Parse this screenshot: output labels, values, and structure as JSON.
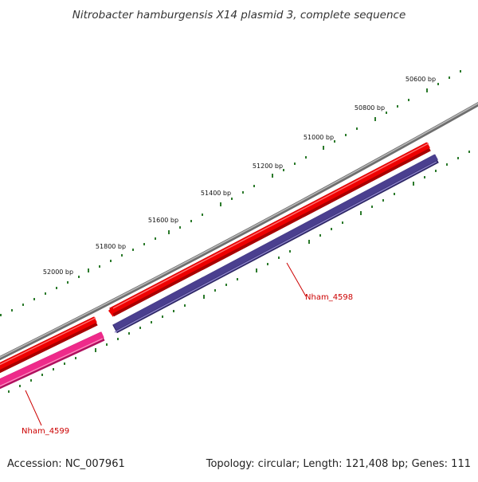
{
  "title": "Nitrobacter hamburgensis X14 plasmid 3, complete sequence",
  "footer": {
    "accession": "Accession: NC_007961",
    "summary": "Topology: circular; Length: 121,408 bp; Genes: 111"
  },
  "ruler": {
    "labels": [
      "50600 bp",
      "50800 bp",
      "51000 bp",
      "51200 bp",
      "51400 bp",
      "51600 bp",
      "51800 bp",
      "52000 bp"
    ]
  },
  "genes": [
    {
      "label": "Nham_4598",
      "color": "#cc0000"
    },
    {
      "label": "Nham_4599",
      "color": "#cc0000"
    }
  ],
  "colors": {
    "backbone": "#8a8a8a",
    "forward_gene": "#ee0000",
    "reverse_gene": "#4a3f8f",
    "extra_gene": "#ee2a8a",
    "tick": "#2b7a2b",
    "label": "#cc0000"
  }
}
